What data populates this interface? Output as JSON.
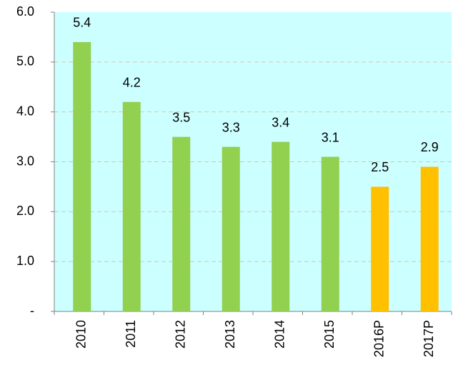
{
  "chart_data": {
    "type": "bar",
    "categories": [
      "2010",
      "2011",
      "2012",
      "2013",
      "2014",
      "2015",
      "2016P",
      "2017P"
    ],
    "values": [
      5.4,
      4.2,
      3.5,
      3.3,
      3.4,
      3.1,
      2.5,
      2.9
    ],
    "colors": [
      "#92d050",
      "#92d050",
      "#92d050",
      "#92d050",
      "#92d050",
      "#92d050",
      "#ffc000",
      "#ffc000"
    ],
    "ylim": [
      0,
      6
    ],
    "yticks": [
      {
        "value": 0,
        "label": "-"
      },
      {
        "value": 1,
        "label": "1.0"
      },
      {
        "value": 2,
        "label": "2.0"
      },
      {
        "value": 3,
        "label": "3.0"
      },
      {
        "value": 4,
        "label": "4.0"
      },
      {
        "value": 5,
        "label": "5.0"
      },
      {
        "value": 6,
        "label": "6.0"
      }
    ],
    "grid": true,
    "background": "#ccffff"
  }
}
